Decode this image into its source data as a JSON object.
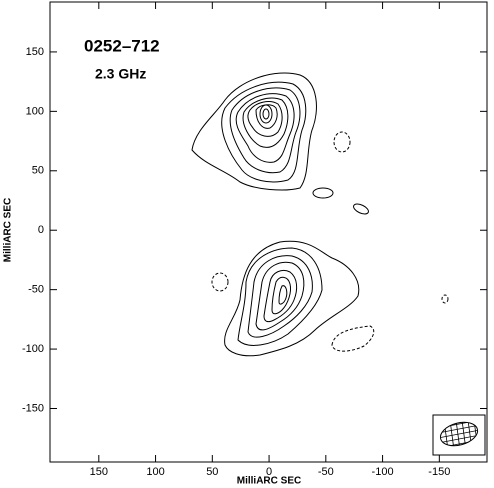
{
  "chart_data": {
    "type": "contour",
    "title": "0252–712",
    "subtitle": "2.3 GHz",
    "x_label": "MilliARC SEC",
    "y_label": "MilliARC SEC",
    "xlim": [
      193,
      -192
    ],
    "ylim": [
      -195,
      192
    ],
    "xticks": [
      150,
      100,
      50,
      0,
      -50,
      -100,
      -150
    ],
    "yticks": [
      150,
      100,
      50,
      0,
      -50,
      -100,
      -150
    ]
  }
}
